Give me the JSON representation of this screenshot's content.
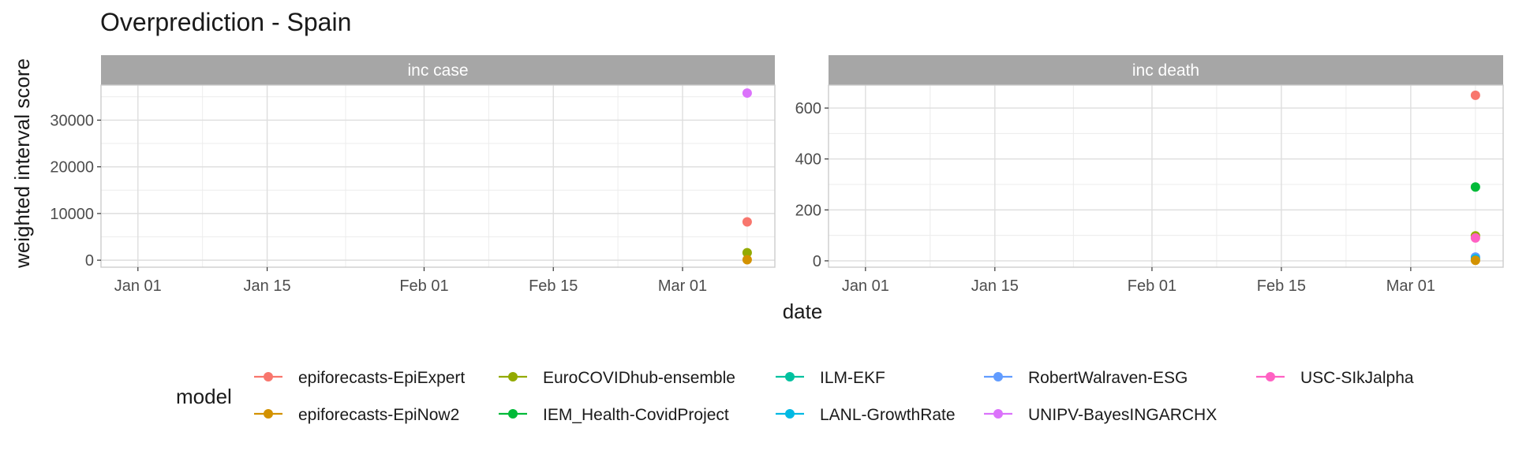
{
  "chart_data": {
    "type": "scatter",
    "title": "Overprediction - Spain",
    "xlabel": "date",
    "ylabel": "weighted interval score",
    "x_tick_labels": [
      "Jan 01",
      "Jan 15",
      "Feb 01",
      "Feb 15",
      "Mar 01"
    ],
    "x_tick_dates": [
      "2021-01-01",
      "2021-01-15",
      "2021-02-01",
      "2021-02-15",
      "2021-03-01"
    ],
    "xlim": [
      "2020-12-28",
      "2021-03-11"
    ],
    "grid": true,
    "legend": {
      "title": "model",
      "placement": "bottom",
      "entries": [
        {
          "name": "epiforecasts-EpiExpert",
          "color": "#F8766D"
        },
        {
          "name": "epiforecasts-EpiNow2",
          "color": "#D39200"
        },
        {
          "name": "EuroCOVIDhub-ensemble",
          "color": "#93AA00"
        },
        {
          "name": "IEM_Health-CovidProject",
          "color": "#00BA38"
        },
        {
          "name": "ILM-EKF",
          "color": "#00C19F"
        },
        {
          "name": "LANL-GrowthRate",
          "color": "#00B9E3"
        },
        {
          "name": "RobertWalraven-ESG",
          "color": "#619CFF"
        },
        {
          "name": "UNIPV-BayesINGARCHX",
          "color": "#DB72FB"
        },
        {
          "name": "USC-SIkJalpha",
          "color": "#FF61C3"
        }
      ]
    },
    "panels": [
      {
        "facet": "inc case",
        "ylim": [
          -1500,
          37500
        ],
        "y_ticks": [
          0,
          10000,
          20000,
          30000
        ],
        "y_tick_labels": [
          "0",
          "10000",
          "20000",
          "30000"
        ],
        "points": [
          {
            "model": "UNIPV-BayesINGARCHX",
            "date": "2021-03-08",
            "value": 35800
          },
          {
            "model": "epiforecasts-EpiExpert",
            "date": "2021-03-08",
            "value": 8200
          },
          {
            "model": "EuroCOVIDhub-ensemble",
            "date": "2021-03-08",
            "value": 1600
          },
          {
            "model": "epiforecasts-EpiNow2",
            "date": "2021-03-08",
            "value": 100
          }
        ]
      },
      {
        "facet": "inc death",
        "ylim": [
          -25,
          690
        ],
        "y_ticks": [
          0,
          200,
          400,
          600
        ],
        "y_tick_labels": [
          "0",
          "200",
          "400",
          "600"
        ],
        "points": [
          {
            "model": "epiforecasts-EpiExpert",
            "date": "2021-03-08",
            "value": 650
          },
          {
            "model": "IEM_Health-CovidProject",
            "date": "2021-03-08",
            "value": 290
          },
          {
            "model": "EuroCOVIDhub-ensemble",
            "date": "2021-03-08",
            "value": 98
          },
          {
            "model": "USC-SIkJalpha",
            "date": "2021-03-08",
            "value": 90
          },
          {
            "model": "RobertWalraven-ESG",
            "date": "2021-03-08",
            "value": 15
          },
          {
            "model": "LANL-GrowthRate",
            "date": "2021-03-08",
            "value": 8
          },
          {
            "model": "epiforecasts-EpiNow2",
            "date": "2021-03-08",
            "value": 2
          }
        ]
      }
    ]
  }
}
